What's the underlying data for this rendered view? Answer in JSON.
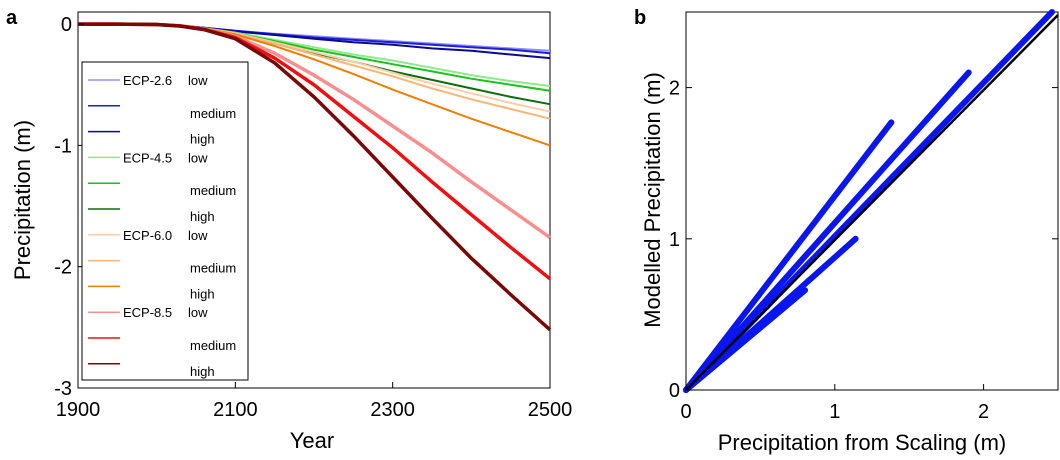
{
  "panel_labels": {
    "a": "a",
    "b": "b"
  },
  "colors": {
    "ecp26_low": "#8f8fff",
    "ecp26_medium": "#1e1ed6",
    "ecp26_high": "#0a0a8c",
    "ecp45_low": "#8ee88e",
    "ecp45_medium": "#19c419",
    "ecp45_high": "#0b6e0b",
    "ecp60_low": "#fccfac",
    "ecp60_medium": "#fbb574",
    "ecp60_high": "#f07e06",
    "ecp85_low": "#f78f8f",
    "ecp85_medium": "#ee1010",
    "ecp85_high": "#7a0606",
    "scatter": "#0a16f0",
    "ref_line": "#000000"
  },
  "chart_data": [
    {
      "type": "line",
      "panel": "a",
      "xlabel": "Year",
      "ylabel": "Precipitation (m)",
      "xlim": [
        1900,
        2500
      ],
      "ylim": [
        -3,
        0.1
      ],
      "xticks": [
        "1900",
        "2100",
        "2300",
        "2500"
      ],
      "yticks": [
        "0",
        "-1",
        "-2",
        "-3"
      ],
      "legend_position": "left",
      "legend": [
        {
          "scenario": "ECP-2.6",
          "level": "low",
          "color_key": "ecp26_low"
        },
        {
          "scenario": "",
          "level": "medium",
          "color_key": "ecp26_medium"
        },
        {
          "scenario": "",
          "level": "high",
          "color_key": "ecp26_high"
        },
        {
          "scenario": "ECP-4.5",
          "level": "low",
          "color_key": "ecp45_low"
        },
        {
          "scenario": "",
          "level": "medium",
          "color_key": "ecp45_medium"
        },
        {
          "scenario": "",
          "level": "high",
          "color_key": "ecp45_high"
        },
        {
          "scenario": "ECP-6.0",
          "level": "low",
          "color_key": "ecp60_low"
        },
        {
          "scenario": "",
          "level": "medium",
          "color_key": "ecp60_medium"
        },
        {
          "scenario": "",
          "level": "high",
          "color_key": "ecp60_high"
        },
        {
          "scenario": "ECP-8.5",
          "level": "low",
          "color_key": "ecp85_low"
        },
        {
          "scenario": "",
          "level": "medium",
          "color_key": "ecp85_medium"
        },
        {
          "scenario": "",
          "level": "high",
          "color_key": "ecp85_high"
        }
      ],
      "x": [
        1900,
        1950,
        2000,
        2030,
        2060,
        2100,
        2150,
        2200,
        2250,
        2300,
        2350,
        2400,
        2450,
        2500
      ],
      "series": [
        {
          "color_key": "ecp26_low",
          "values": [
            0,
            0,
            -0.003,
            -0.012,
            -0.03,
            -0.055,
            -0.08,
            -0.1,
            -0.12,
            -0.14,
            -0.16,
            -0.18,
            -0.2,
            -0.22
          ]
        },
        {
          "color_key": "ecp26_medium",
          "values": [
            0,
            0,
            -0.003,
            -0.012,
            -0.03,
            -0.055,
            -0.083,
            -0.11,
            -0.13,
            -0.15,
            -0.17,
            -0.19,
            -0.21,
            -0.24
          ]
        },
        {
          "color_key": "ecp26_high",
          "values": [
            0,
            0,
            -0.003,
            -0.012,
            -0.03,
            -0.06,
            -0.09,
            -0.12,
            -0.15,
            -0.17,
            -0.2,
            -0.22,
            -0.25,
            -0.28
          ]
        },
        {
          "color_key": "ecp45_low",
          "values": [
            0,
            0,
            -0.003,
            -0.013,
            -0.033,
            -0.07,
            -0.13,
            -0.19,
            -0.25,
            -0.3,
            -0.36,
            -0.42,
            -0.47,
            -0.51
          ]
        },
        {
          "color_key": "ecp45_medium",
          "values": [
            0,
            0,
            -0.003,
            -0.013,
            -0.034,
            -0.075,
            -0.14,
            -0.21,
            -0.27,
            -0.33,
            -0.39,
            -0.45,
            -0.5,
            -0.55
          ]
        },
        {
          "color_key": "ecp45_high",
          "values": [
            0,
            0,
            -0.003,
            -0.014,
            -0.036,
            -0.08,
            -0.16,
            -0.24,
            -0.31,
            -0.39,
            -0.46,
            -0.53,
            -0.6,
            -0.66
          ]
        },
        {
          "color_key": "ecp60_low",
          "values": [
            0,
            0,
            -0.003,
            -0.013,
            -0.034,
            -0.075,
            -0.15,
            -0.23,
            -0.31,
            -0.4,
            -0.49,
            -0.57,
            -0.65,
            -0.72
          ]
        },
        {
          "color_key": "ecp60_medium",
          "values": [
            0,
            0,
            -0.003,
            -0.014,
            -0.035,
            -0.08,
            -0.16,
            -0.25,
            -0.34,
            -0.43,
            -0.53,
            -0.62,
            -0.7,
            -0.78
          ]
        },
        {
          "color_key": "ecp60_high",
          "values": [
            0,
            0,
            -0.003,
            -0.014,
            -0.037,
            -0.085,
            -0.18,
            -0.29,
            -0.41,
            -0.54,
            -0.66,
            -0.78,
            -0.89,
            -1.0
          ]
        },
        {
          "color_key": "ecp85_low",
          "values": [
            0,
            0,
            -0.003,
            -0.015,
            -0.04,
            -0.1,
            -0.24,
            -0.42,
            -0.62,
            -0.84,
            -1.06,
            -1.3,
            -1.53,
            -1.76
          ]
        },
        {
          "color_key": "ecp85_medium",
          "values": [
            0,
            0,
            -0.003,
            -0.015,
            -0.042,
            -0.11,
            -0.28,
            -0.5,
            -0.76,
            -1.02,
            -1.3,
            -1.57,
            -1.84,
            -2.1
          ]
        },
        {
          "color_key": "ecp85_high",
          "values": [
            0,
            0,
            -0.003,
            -0.016,
            -0.045,
            -0.12,
            -0.32,
            -0.6,
            -0.92,
            -1.26,
            -1.6,
            -1.93,
            -2.23,
            -2.52
          ]
        }
      ]
    },
    {
      "type": "scatter",
      "panel": "b",
      "xlabel": "Precipitation from Scaling (m)",
      "ylabel": "Modelled Precipitation (m)",
      "xlim": [
        0,
        2.5
      ],
      "ylim": [
        0,
        2.5
      ],
      "xticks": [
        "0",
        "1",
        "2"
      ],
      "yticks": [
        "0",
        "1",
        "2"
      ],
      "reference_line": {
        "x": [
          0,
          2.5
        ],
        "y": [
          0,
          2.48
        ]
      },
      "series": [
        {
          "x": [
            0,
            0.8
          ],
          "y": [
            0,
            0.66
          ]
        },
        {
          "x": [
            0,
            1.14
          ],
          "y": [
            0,
            1.0
          ]
        },
        {
          "x": [
            0,
            1.38
          ],
          "y": [
            0,
            1.77
          ]
        },
        {
          "x": [
            0,
            1.9
          ],
          "y": [
            0,
            2.1
          ]
        },
        {
          "x": [
            0,
            2.46
          ],
          "y": [
            0,
            2.5
          ]
        }
      ]
    }
  ]
}
